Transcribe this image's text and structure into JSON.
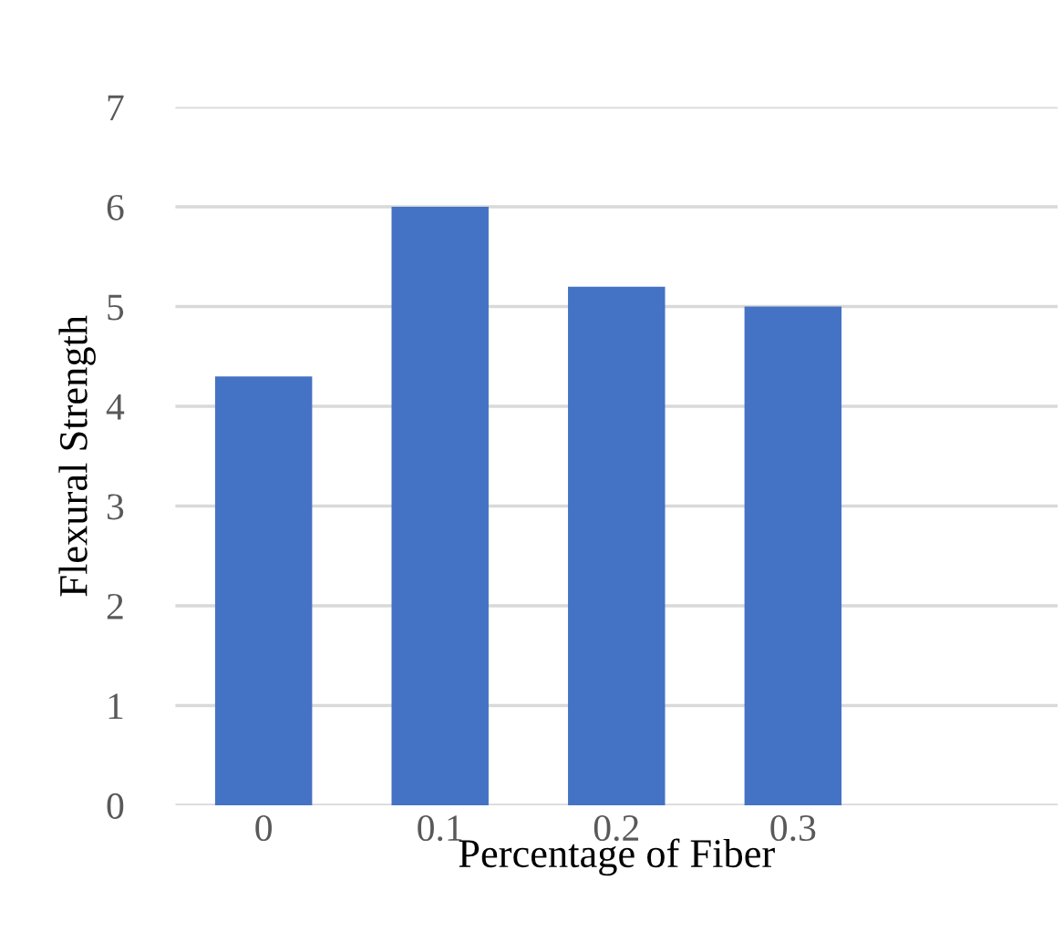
{
  "chart_data": {
    "type": "bar",
    "xlabel": "Percentage of Fiber",
    "ylabel": "Flexural Strength",
    "categories": [
      "0",
      "0.1",
      "0.2",
      "0.3",
      null
    ],
    "values": [
      4.3,
      6.0,
      5.2,
      5.0,
      null
    ],
    "color": "#4472c4",
    "ylim": [
      0,
      7
    ],
    "yticks": [
      0,
      1,
      2,
      3,
      4,
      5,
      6,
      7
    ],
    "grid": "y",
    "legend": false
  }
}
